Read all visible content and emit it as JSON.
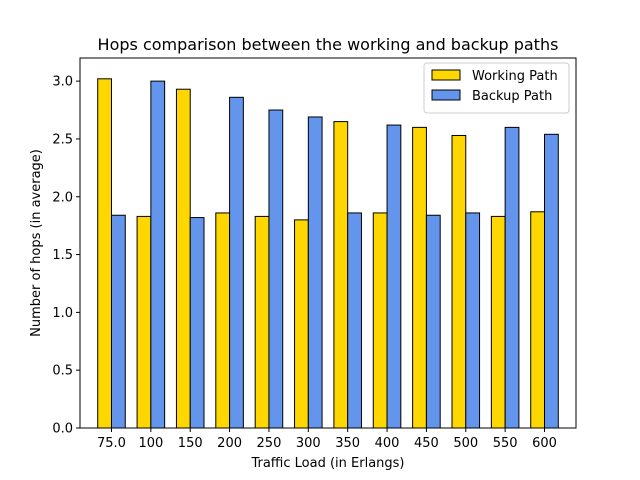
{
  "chart_data": {
    "type": "bar",
    "title": "Hops comparison between the working and backup paths",
    "xlabel": "Traffic Load (in Erlangs)",
    "ylabel": "Number of hops (in average)",
    "categories": [
      "75.0",
      "100",
      "150",
      "200",
      "250",
      "300",
      "350",
      "400",
      "450",
      "500",
      "550",
      "600"
    ],
    "series": [
      {
        "name": "Working Path",
        "color": "#FFD700",
        "values": [
          3.02,
          1.83,
          2.93,
          1.86,
          1.83,
          1.8,
          2.65,
          1.86,
          2.6,
          2.53,
          1.83,
          1.87
        ]
      },
      {
        "name": "Backup Path",
        "color": "#6495ED",
        "values": [
          1.84,
          3.0,
          1.82,
          2.86,
          2.75,
          2.69,
          1.86,
          2.62,
          1.84,
          1.86,
          2.6,
          2.54
        ]
      }
    ],
    "ylim": [
      0,
      3.2
    ],
    "yticks": [
      "0.0",
      "0.5",
      "1.0",
      "1.5",
      "2.0",
      "2.5",
      "3.0"
    ],
    "grid": false,
    "legend_position": "top-right"
  }
}
